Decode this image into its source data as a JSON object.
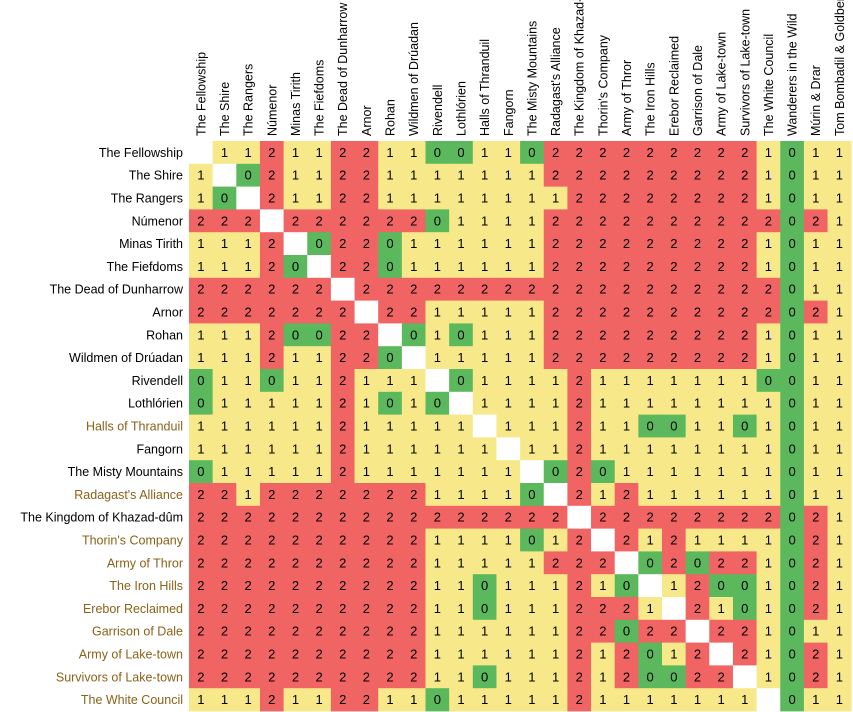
{
  "chart_data": {
    "type": "heatmap",
    "title": "",
    "columns": [
      "The Fellowship",
      "The Shire",
      "The Rangers",
      "Númenor",
      "Minas Tirith",
      "The Fiefdoms",
      "The Dead of Dunharrow",
      "Arnor",
      "Rohan",
      "Wildmen of Drúadan",
      "Rivendell",
      "Lothlórien",
      "Halls of Thranduil",
      "Fangorn",
      "The Misty Mountains",
      "Radagast's Alliance",
      "The Kingdom of Khazad-dûm",
      "Thorin's Company",
      "Army of Thror",
      "The Iron Hills",
      "Erebor Reclaimed",
      "Garrison of Dale",
      "Army of Lake-town",
      "Survivors of Lake-town",
      "The White Council",
      "Wanderers in the Wild",
      "Múrin & Drar",
      "Tom Bombadil & Goldberry"
    ],
    "rows": [
      "The Fellowship",
      "The Shire",
      "The Rangers",
      "Númenor",
      "Minas Tirith",
      "The Fiefdoms",
      "The Dead of Dunharrow",
      "Arnor",
      "Rohan",
      "Wildmen of Drúadan",
      "Rivendell",
      "Lothlórien",
      "Halls of Thranduil",
      "Fangorn",
      "The Misty Mountains",
      "Radagast's Alliance",
      "The Kingdom of Khazad-dûm",
      "Thorin's Company",
      "Army of Thror",
      "The Iron Hills",
      "Erebor Reclaimed",
      "Garrison of Dale",
      "Army of Lake-town",
      "Survivors of Lake-town",
      "The White Council"
    ],
    "row_label_colors": [
      "#000000",
      "#000000",
      "#000000",
      "#000000",
      "#000000",
      "#000000",
      "#000000",
      "#000000",
      "#000000",
      "#000000",
      "#000000",
      "#000000",
      "#8a6218",
      "#000000",
      "#000000",
      "#8a6218",
      "#000000",
      "#8a6218",
      "#8a6218",
      "#8a6218",
      "#8a6218",
      "#8a6218",
      "#8a6218",
      "#8a6218",
      "#8a6218"
    ],
    "values": [
      [
        null,
        1,
        1,
        2,
        1,
        1,
        2,
        2,
        1,
        1,
        0,
        0,
        1,
        1,
        0,
        2,
        2,
        2,
        2,
        2,
        2,
        2,
        2,
        2,
        1,
        0,
        1,
        1
      ],
      [
        1,
        null,
        0,
        2,
        1,
        1,
        2,
        2,
        1,
        1,
        1,
        1,
        1,
        1,
        1,
        2,
        2,
        2,
        2,
        2,
        2,
        2,
        2,
        2,
        1,
        0,
        1,
        1
      ],
      [
        1,
        0,
        null,
        2,
        1,
        1,
        2,
        2,
        1,
        1,
        1,
        1,
        1,
        1,
        1,
        1,
        2,
        2,
        2,
        2,
        2,
        2,
        2,
        2,
        1,
        0,
        1,
        1
      ],
      [
        2,
        2,
        2,
        null,
        2,
        2,
        2,
        2,
        2,
        2,
        0,
        1,
        1,
        1,
        1,
        2,
        2,
        2,
        2,
        2,
        2,
        2,
        2,
        2,
        2,
        0,
        2,
        1
      ],
      [
        1,
        1,
        1,
        2,
        null,
        0,
        2,
        2,
        0,
        1,
        1,
        1,
        1,
        1,
        1,
        2,
        2,
        2,
        2,
        2,
        2,
        2,
        2,
        2,
        1,
        0,
        1,
        1
      ],
      [
        1,
        1,
        1,
        2,
        0,
        null,
        2,
        2,
        0,
        1,
        1,
        1,
        1,
        1,
        1,
        2,
        2,
        2,
        2,
        2,
        2,
        2,
        2,
        2,
        1,
        0,
        1,
        1
      ],
      [
        2,
        2,
        2,
        2,
        2,
        2,
        null,
        2,
        2,
        2,
        2,
        2,
        2,
        2,
        2,
        2,
        2,
        2,
        2,
        2,
        2,
        2,
        2,
        2,
        2,
        0,
        1,
        1
      ],
      [
        2,
        2,
        2,
        2,
        2,
        2,
        2,
        null,
        2,
        2,
        1,
        1,
        1,
        1,
        1,
        2,
        2,
        2,
        2,
        2,
        2,
        2,
        2,
        2,
        2,
        0,
        2,
        1
      ],
      [
        1,
        1,
        1,
        2,
        0,
        0,
        2,
        2,
        null,
        0,
        1,
        0,
        1,
        1,
        1,
        2,
        2,
        2,
        2,
        2,
        2,
        2,
        2,
        2,
        1,
        0,
        1,
        1
      ],
      [
        1,
        1,
        1,
        2,
        1,
        1,
        2,
        2,
        0,
        null,
        1,
        1,
        1,
        1,
        1,
        2,
        2,
        2,
        2,
        2,
        2,
        2,
        2,
        2,
        1,
        0,
        1,
        1
      ],
      [
        0,
        1,
        1,
        0,
        1,
        1,
        2,
        1,
        1,
        1,
        null,
        0,
        1,
        1,
        1,
        1,
        2,
        1,
        1,
        1,
        1,
        1,
        1,
        1,
        0,
        0,
        1,
        1
      ],
      [
        0,
        1,
        1,
        1,
        1,
        1,
        2,
        1,
        0,
        1,
        0,
        null,
        1,
        1,
        1,
        1,
        2,
        1,
        1,
        1,
        1,
        1,
        1,
        1,
        1,
        0,
        1,
        1
      ],
      [
        1,
        1,
        1,
        1,
        1,
        1,
        2,
        1,
        1,
        1,
        1,
        1,
        null,
        1,
        1,
        1,
        2,
        1,
        1,
        0,
        0,
        1,
        1,
        0,
        1,
        0,
        1,
        1
      ],
      [
        1,
        1,
        1,
        1,
        1,
        1,
        2,
        1,
        1,
        1,
        1,
        1,
        1,
        null,
        1,
        1,
        2,
        1,
        1,
        1,
        1,
        1,
        1,
        1,
        1,
        0,
        1,
        1
      ],
      [
        0,
        1,
        1,
        1,
        1,
        1,
        2,
        1,
        1,
        1,
        1,
        1,
        1,
        1,
        null,
        0,
        2,
        0,
        1,
        1,
        1,
        1,
        1,
        1,
        1,
        0,
        1,
        1
      ],
      [
        2,
        2,
        1,
        2,
        2,
        2,
        2,
        2,
        2,
        2,
        1,
        1,
        1,
        1,
        0,
        null,
        2,
        1,
        2,
        1,
        1,
        1,
        1,
        1,
        1,
        0,
        1,
        1
      ],
      [
        2,
        2,
        2,
        2,
        2,
        2,
        2,
        2,
        2,
        2,
        2,
        2,
        2,
        2,
        2,
        2,
        null,
        2,
        2,
        2,
        2,
        2,
        2,
        2,
        2,
        0,
        2,
        1
      ],
      [
        2,
        2,
        2,
        2,
        2,
        2,
        2,
        2,
        2,
        2,
        1,
        1,
        1,
        1,
        0,
        1,
        2,
        null,
        2,
        1,
        2,
        1,
        1,
        1,
        1,
        0,
        2,
        1
      ],
      [
        2,
        2,
        2,
        2,
        2,
        2,
        2,
        2,
        2,
        2,
        1,
        1,
        1,
        1,
        1,
        2,
        2,
        2,
        null,
        0,
        2,
        0,
        2,
        2,
        1,
        0,
        2,
        1
      ],
      [
        2,
        2,
        2,
        2,
        2,
        2,
        2,
        2,
        2,
        2,
        1,
        1,
        0,
        1,
        1,
        1,
        2,
        1,
        0,
        null,
        1,
        2,
        0,
        0,
        1,
        0,
        2,
        1
      ],
      [
        2,
        2,
        2,
        2,
        2,
        2,
        2,
        2,
        2,
        2,
        1,
        1,
        0,
        1,
        1,
        1,
        2,
        2,
        2,
        1,
        null,
        2,
        1,
        0,
        1,
        0,
        2,
        1
      ],
      [
        2,
        2,
        2,
        2,
        2,
        2,
        2,
        2,
        2,
        2,
        1,
        1,
        1,
        1,
        1,
        1,
        2,
        2,
        0,
        2,
        2,
        null,
        2,
        2,
        1,
        0,
        1,
        1
      ],
      [
        2,
        2,
        2,
        2,
        2,
        2,
        2,
        2,
        2,
        2,
        1,
        1,
        1,
        1,
        1,
        1,
        2,
        1,
        2,
        0,
        1,
        2,
        null,
        2,
        1,
        0,
        2,
        1
      ],
      [
        2,
        2,
        2,
        2,
        2,
        2,
        2,
        2,
        2,
        2,
        1,
        1,
        0,
        1,
        1,
        1,
        2,
        1,
        2,
        0,
        0,
        2,
        2,
        null,
        1,
        0,
        2,
        1
      ],
      [
        1,
        1,
        1,
        2,
        1,
        1,
        2,
        2,
        1,
        1,
        0,
        1,
        1,
        1,
        1,
        1,
        2,
        1,
        1,
        1,
        1,
        1,
        1,
        1,
        null,
        0,
        1,
        1
      ]
    ],
    "value_colors": {
      "0": "#5cb85c",
      "1": "#f7e98a",
      "2": "#f06464"
    },
    "diagonal_color": "#ffffff",
    "full_column": {
      "column": "Wanderers in the Wild",
      "color": "#5cb85c"
    }
  }
}
